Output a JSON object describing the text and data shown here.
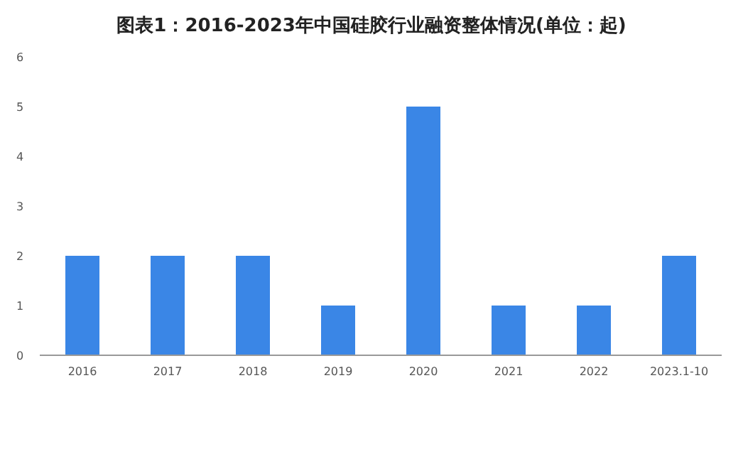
{
  "chart_data": {
    "type": "bar",
    "title": "图表1：2016-2023年中国硅胶行业融资整体情况(单位：起)",
    "categories": [
      "2016",
      "2017",
      "2018",
      "2019",
      "2020",
      "2021",
      "2022",
      "2023.1-10"
    ],
    "values": [
      2,
      2,
      2,
      1,
      5,
      1,
      1,
      2
    ],
    "color": "#3a86e6",
    "ylim": [
      0,
      6
    ],
    "yticks": [
      0,
      1,
      2,
      3,
      4,
      5,
      6
    ],
    "grid": false
  }
}
